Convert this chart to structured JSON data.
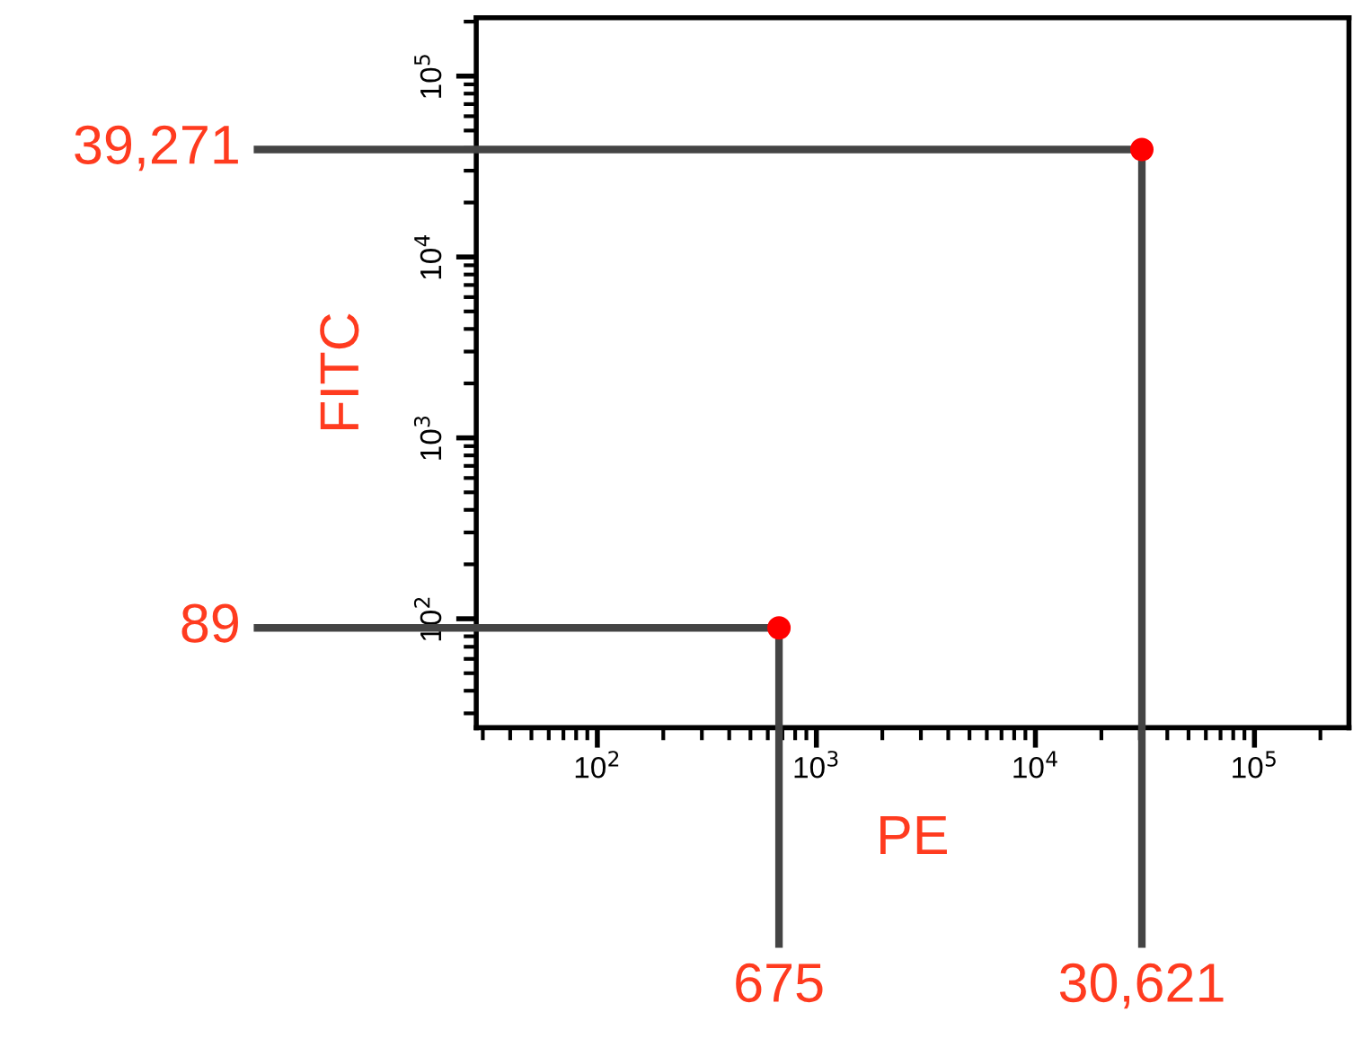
{
  "chart_data": {
    "type": "scatter",
    "xlabel": "PE",
    "ylabel": "FITC",
    "log": "xy",
    "marker": "circle",
    "grid": false,
    "xlim": [
      28,
      270000
    ],
    "ylim": [
      25,
      210000
    ],
    "xticks": [
      {
        "value": 100,
        "label": "10$^{2}$"
      },
      {
        "value": 1000,
        "label": "10$^{3}$"
      },
      {
        "value": 10000,
        "label": "10$^{4}$"
      },
      {
        "value": 100000,
        "label": "10$^{5}$"
      }
    ],
    "yticks": [
      {
        "value": 100,
        "label": "10$^{2}$"
      },
      {
        "value": 1000,
        "label": "10$^{3}$"
      },
      {
        "value": 10000,
        "label": "10$^{4}$"
      },
      {
        "value": 100000,
        "label": "10$^{5}$"
      }
    ],
    "series": [
      {
        "color": "#ff0000",
        "x": [
          675,
          30621
        ],
        "values": [
          89,
          39271
        ]
      }
    ],
    "ref_lines": [
      {
        "axis": "y",
        "value": 39271,
        "label": "39,271",
        "color": "#444444"
      },
      {
        "axis": "y",
        "value": 89,
        "label": "89",
        "color": "#444444"
      },
      {
        "axis": "x",
        "value": 675,
        "label": "675",
        "color": "#444444"
      },
      {
        "axis": "x",
        "value": 30621,
        "label": "30,621",
        "color": "#444444"
      }
    ]
  }
}
